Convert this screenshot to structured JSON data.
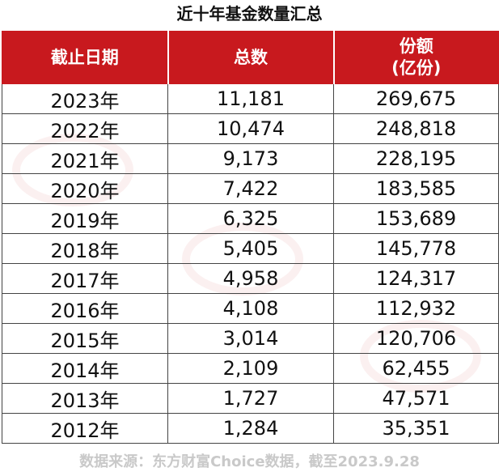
{
  "title": "近十年基金数量汇总",
  "header": {
    "col_date": "截止日期",
    "col_count": "总数",
    "col_share_line1": "份额",
    "col_share_line2": "(亿份)"
  },
  "rows": [
    {
      "date": "2023年",
      "count": "11,181",
      "share": "269,675"
    },
    {
      "date": "2022年",
      "count": "10,474",
      "share": "248,818"
    },
    {
      "date": "2021年",
      "count": "9,173",
      "share": "228,195"
    },
    {
      "date": "2020年",
      "count": "7,422",
      "share": "183,585"
    },
    {
      "date": "2019年",
      "count": "6,325",
      "share": "153,689"
    },
    {
      "date": "2018年",
      "count": "5,405",
      "share": "145,778"
    },
    {
      "date": "2017年",
      "count": "4,958",
      "share": "124,317"
    },
    {
      "date": "2016年",
      "count": "4,108",
      "share": "112,932"
    },
    {
      "date": "2015年",
      "count": "3,014",
      "share": "120,706"
    },
    {
      "date": "2014年",
      "count": "2,109",
      "share": "62,455"
    },
    {
      "date": "2013年",
      "count": "1,727",
      "share": "47,571"
    },
    {
      "date": "2012年",
      "count": "1,284",
      "share": "35,351"
    }
  ],
  "source": "数据来源：东方财富Choice数据，截至2023.9.28",
  "colors": {
    "header_bg": "#c8191e",
    "header_text": "#ffffff",
    "source_text": "#c9c9c9"
  }
}
